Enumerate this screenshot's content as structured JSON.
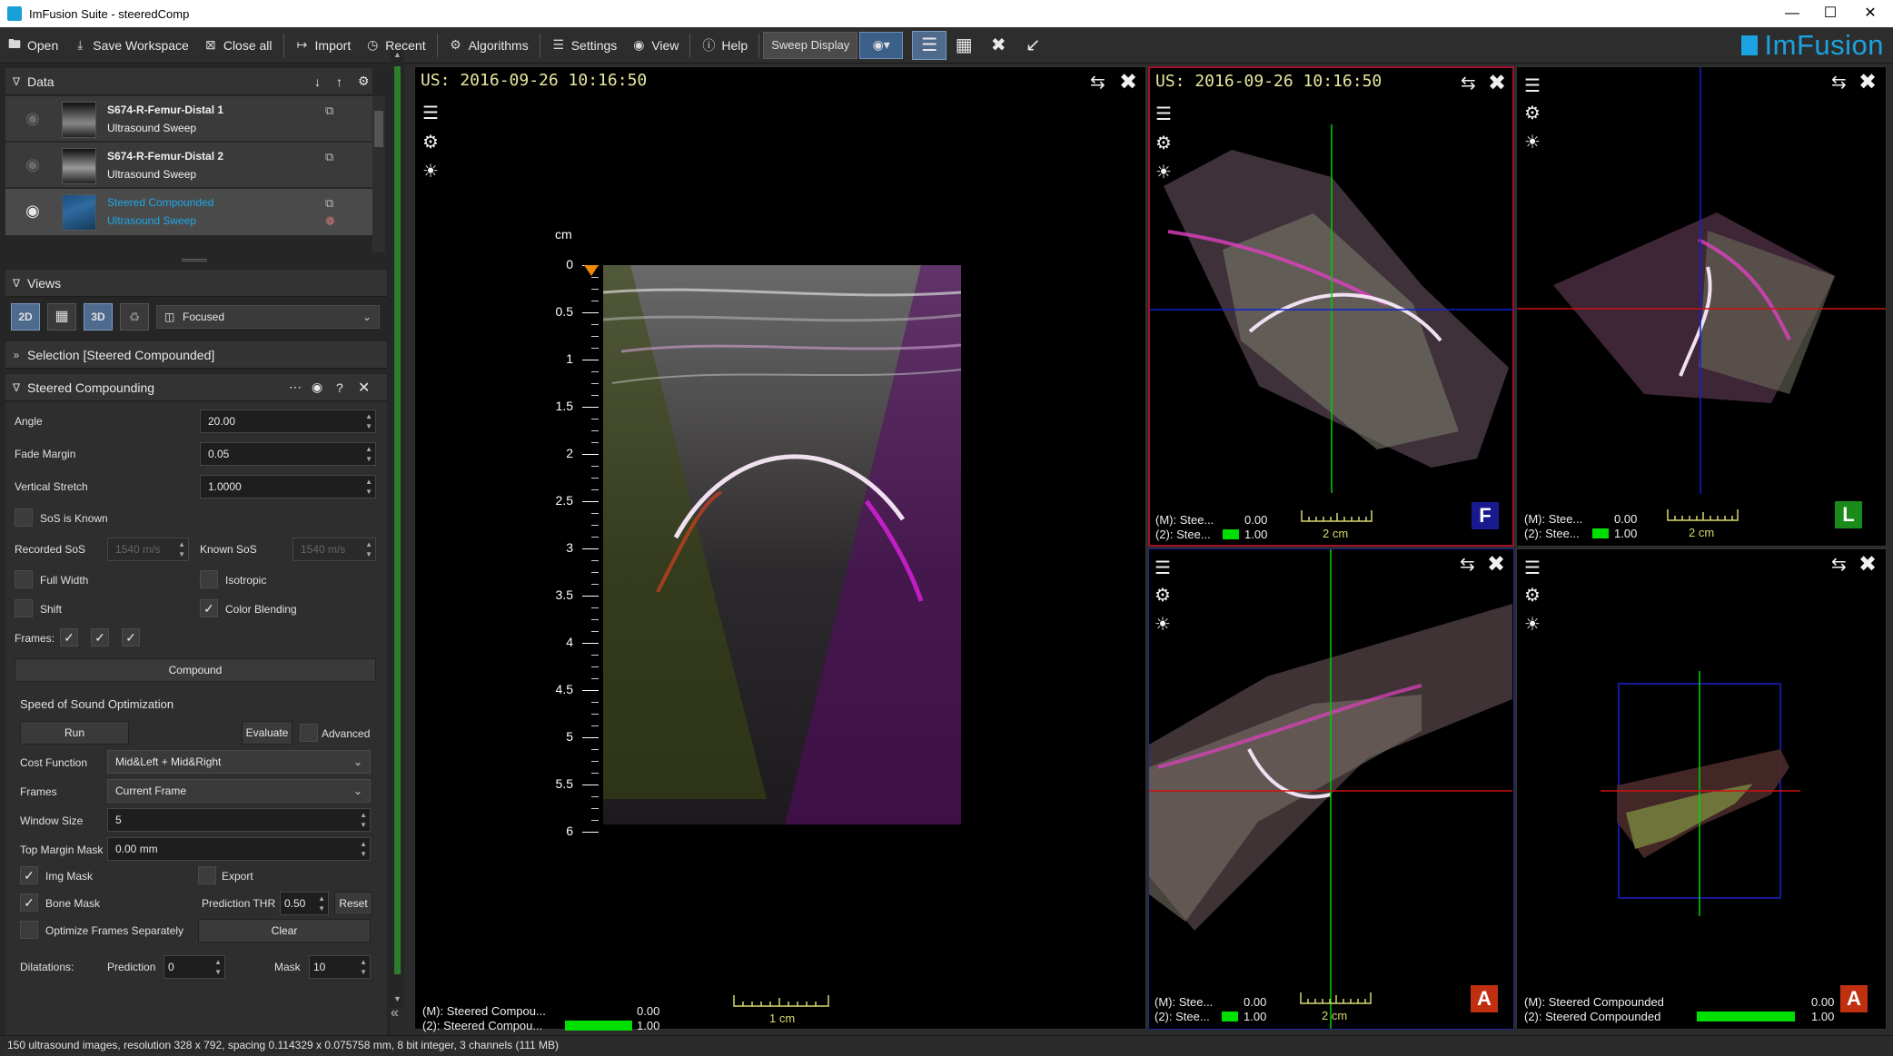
{
  "window": {
    "title": "ImFusion Suite - steeredComp"
  },
  "toolbar": {
    "open": "Open",
    "save_workspace": "Save Workspace",
    "close_all": "Close all",
    "import": "Import",
    "recent": "Recent",
    "algorithms": "Algorithms",
    "settings": "Settings",
    "view": "View",
    "help": "Help",
    "sweep_display": "Sweep Display"
  },
  "logo": {
    "text": "ImFusion",
    "color": "#1aa3e0"
  },
  "data_panel": {
    "title": "Data",
    "items": [
      {
        "name": "S674-R-Femur-Distal 1",
        "type": "Ultrasound Sweep",
        "visible": false
      },
      {
        "name": "S674-R-Femur-Distal 2",
        "type": "Ultrasound Sweep",
        "visible": false
      },
      {
        "name": "Steered Compounded",
        "type": "Ultrasound Sweep",
        "visible": true,
        "selected": true,
        "color": "#1ea7e8"
      }
    ]
  },
  "views_panel": {
    "title": "Views",
    "buttons": [
      "2D",
      "MPR",
      "3D",
      "graph"
    ],
    "layout": "Focused"
  },
  "selection_panel": {
    "title": "Selection [Steered Compounded]"
  },
  "steered_panel": {
    "title": "Steered Compounding",
    "angle_label": "Angle",
    "angle": "20.00",
    "fade_label": "Fade Margin",
    "fade": "0.05",
    "vstretch_label": "Vertical Stretch",
    "vstretch": "1.0000",
    "sos_known": "SoS is Known",
    "recorded_sos_label": "Recorded SoS",
    "recorded_sos": "1540 m/s",
    "known_sos_label": "Known SoS",
    "known_sos": "1540 m/s",
    "full_width": "Full Width",
    "isotropic": "Isotropic",
    "shift": "Shift",
    "color_blending": "Color Blending",
    "frames_label": "Frames:",
    "compound": "Compound",
    "sos_opt_title": "Speed of Sound Optimization",
    "run": "Run",
    "evaluate": "Evaluate",
    "advanced": "Advanced",
    "cost_function_label": "Cost Function",
    "cost_function": "Mid&Left + Mid&Right",
    "frames_sel_label": "Frames",
    "frames_sel": "Current Frame",
    "window_size_label": "Window Size",
    "window_size": "5",
    "top_margin_label": "Top Margin Mask",
    "top_margin": "0.00 mm",
    "img_mask": "Img Mask",
    "export": "Export",
    "bone_mask": "Bone Mask",
    "pred_thr_label": "Prediction THR",
    "pred_thr": "0.50",
    "reset": "Reset",
    "optimize_frames": "Optimize Frames Separately",
    "clear": "Clear",
    "dilatations_label": "Dilatations:",
    "prediction_label": "Prediction",
    "prediction": "0",
    "mask_label": "Mask",
    "mask": "10"
  },
  "main_view": {
    "title": "US: 2016-09-26 10:16:50",
    "axis_unit": "cm",
    "ticks": [
      "0",
      "0.5",
      "1",
      "1.5",
      "2",
      "2.5",
      "3",
      "3.5",
      "4",
      "4.5",
      "5",
      "5.5",
      "6"
    ],
    "info_m": "(M): Steered Compou...",
    "info_2": "(2): Steered Compou...",
    "val_m": "0.00",
    "val_2": "1.00",
    "scale": "1 cm"
  },
  "view_tr1": {
    "title": "US: 2016-09-26 10:16:50",
    "info_m": "(M): Stee...",
    "info_2": "(2): Stee...",
    "val_m": "0.00",
    "val_2": "1.00",
    "scale": "2 cm",
    "orientation": "F"
  },
  "view_tr2": {
    "info_m": "(M): Stee...",
    "info_2": "(2): Stee...",
    "val_m": "0.00",
    "val_2": "1.00",
    "scale": "2 cm",
    "orientation": "L"
  },
  "view_br1": {
    "info_m": "(M): Stee...",
    "info_2": "(2): Stee...",
    "val_m": "0.00",
    "val_2": "1.00",
    "scale": "2 cm",
    "orientation": "A"
  },
  "view_br2": {
    "info_m": "(M): Steered Compounded",
    "info_2": "(2): Steered Compounded",
    "val_m": "0.00",
    "val_2": "1.00",
    "orientation": "A"
  },
  "statusbar": "150 ultrasound images, resolution 328 x 792, spacing 0.114329 x 0.075758 mm, 8 bit integer, 3 channels (111 MB)"
}
